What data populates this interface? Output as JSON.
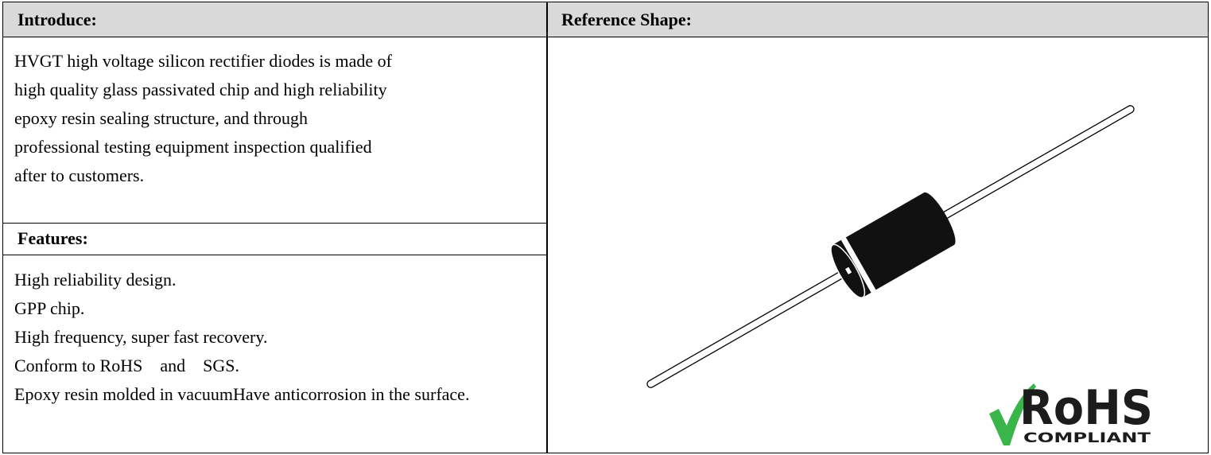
{
  "header": {
    "introduce_title": "Introduce:",
    "reference_title": "Reference Shape:"
  },
  "introduce": {
    "lines": [
      "HVGT high voltage silicon rectifier diodes is made of",
      "high quality glass passivated chip and high reliability",
      "epoxy resin sealing structure, and through",
      "professional testing equipment inspection qualified",
      "after to customers."
    ]
  },
  "features": {
    "title": "Features:",
    "items": [
      "High reliability design.",
      "GPP chip.",
      "High frequency, super fast recovery.",
      "Conform to RoHS    and    SGS.",
      "Epoxy resin molded in vacuumHave anticorrosion in the surface."
    ]
  },
  "logo": {
    "main": "RoHS",
    "sub": "COMPLIANT"
  }
}
